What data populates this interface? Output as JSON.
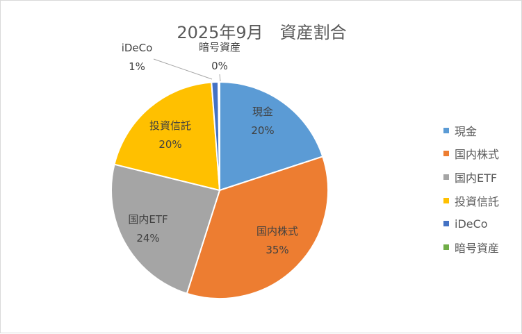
{
  "chart_data": {
    "type": "pie",
    "title": "2025年9月　資産割合",
    "categories": [
      "現金",
      "国内株式",
      "国内ETF",
      "投資信託",
      "iDeCo",
      "暗号資産"
    ],
    "values": [
      20,
      35,
      24,
      20,
      1,
      0.2
    ],
    "percent_labels": [
      "20%",
      "35%",
      "24%",
      "20%",
      "1%",
      "0%"
    ],
    "colors": [
      "#5b9bd5",
      "#ed7d31",
      "#a5a5a5",
      "#ffc000",
      "#4472c4",
      "#70ad47"
    ],
    "legend_position": "right"
  }
}
